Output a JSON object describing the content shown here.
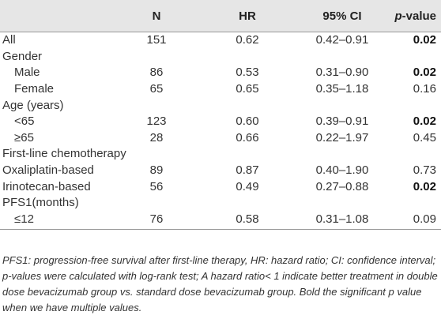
{
  "table": {
    "header": [
      "",
      "N",
      "HR",
      "95% CI",
      "p-value"
    ],
    "rows": [
      {
        "cells": [
          "All",
          "151",
          "0.62",
          "0.42–0.91",
          "0.02"
        ],
        "bold_p": true
      },
      {
        "cells": [
          "Gender"
        ]
      },
      {
        "cells": [
          "Male",
          "86",
          "0.53",
          "0.31–0.90",
          "0.02"
        ],
        "indent": true,
        "bold_p": true
      },
      {
        "cells": [
          "Female",
          "65",
          "0.65",
          "0.35–1.18",
          "0.16"
        ],
        "indent": true
      },
      {
        "cells": [
          "Age (years)"
        ]
      },
      {
        "cells": [
          "<65",
          "123",
          "0.60",
          "0.39–0.91",
          "0.02"
        ],
        "indent": true,
        "bold_p": true
      },
      {
        "cells": [
          "≥65",
          "28",
          "0.66",
          "0.22–1.97",
          "0.45"
        ],
        "indent": true
      },
      {
        "cells": [
          "First-line chemotherapy"
        ]
      },
      {
        "cells": [
          "Oxaliplatin-based",
          "89",
          "0.87",
          "0.40–1.90",
          "0.73"
        ]
      },
      {
        "cells": [
          "Irinotecan-based",
          "56",
          "0.49",
          "0.27–0.88",
          "0.02"
        ],
        "bold_p": true
      },
      {
        "cells": [
          "PFS1(months)"
        ]
      },
      {
        "cells": [
          "≤12",
          "76",
          "0.58",
          "0.31–1.08",
          "0.09"
        ],
        "indent": true
      }
    ]
  },
  "footnote": "PFS1: progression-free survival after first-line therapy, HR: hazard ratio; CI: confidence interval; p-values were calculated with log-rank test; A hazard ratio< 1 indicate better treatment in double dose bevacizumab group vs. standard dose bevacizumab group. Bold the significant p value when we have multiple values."
}
